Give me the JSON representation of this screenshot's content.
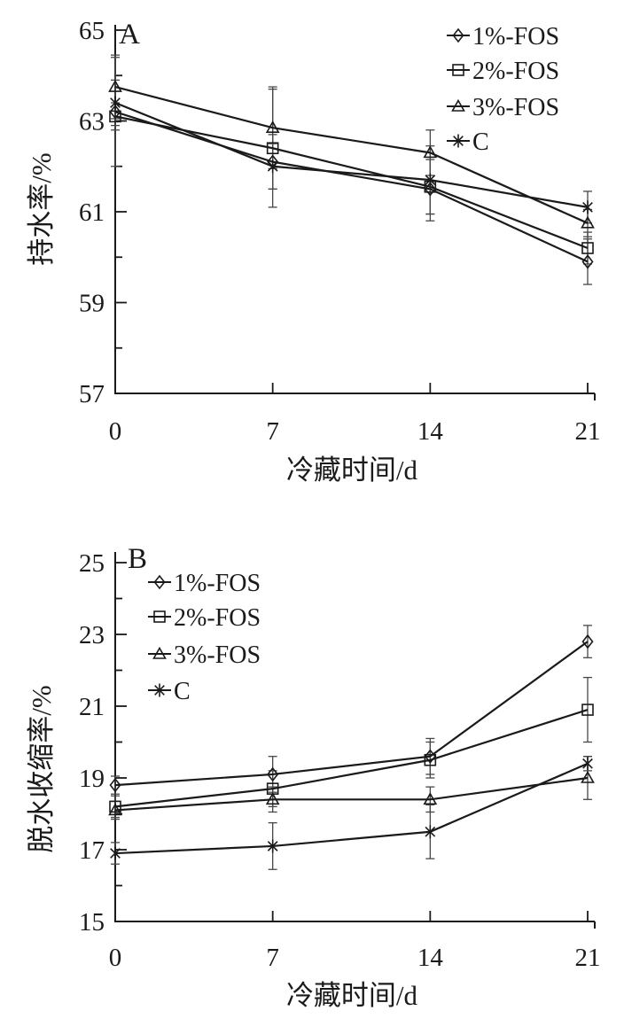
{
  "page": {
    "background": "#ffffff",
    "text_color": "#1a1a1a",
    "line_color": "#1a1a1a",
    "error_bar_color": "#474747"
  },
  "chart_data": [
    {
      "type": "line",
      "panel_label": "A",
      "xlabel": "冷藏时间/d",
      "ylabel": "持水率/%",
      "x": [
        0,
        7,
        14,
        21
      ],
      "xlim": [
        0,
        21
      ],
      "ylim": [
        57,
        65
      ],
      "yticks": [
        57,
        59,
        61,
        63,
        65
      ],
      "yminorticks": [
        58,
        60,
        62,
        64
      ],
      "grid": false,
      "error_bars": true,
      "legend_position": "top-right",
      "series": [
        {
          "name": "1%-FOS",
          "marker": "diamond",
          "values": [
            63.2,
            62.1,
            61.5,
            59.9
          ],
          "errors": [
            1.2,
            0.6,
            0.7,
            0.5
          ]
        },
        {
          "name": "2%-FOS",
          "marker": "square",
          "values": [
            63.1,
            62.4,
            61.55,
            60.2
          ],
          "errors": [
            0.3,
            1.3,
            0.6,
            0.35
          ]
        },
        {
          "name": "3%-FOS",
          "marker": "triangle",
          "values": [
            63.75,
            62.85,
            62.3,
            60.75
          ],
          "errors": [
            0.7,
            0.9,
            0.5,
            0.3
          ]
        },
        {
          "name": "C",
          "marker": "asterisk",
          "values": [
            63.4,
            62.0,
            61.7,
            61.1
          ],
          "errors": [
            0.5,
            0.5,
            0.75,
            0.35
          ]
        }
      ]
    },
    {
      "type": "line",
      "panel_label": "B",
      "xlabel": "冷藏时间/d",
      "ylabel": "脱水收缩率/%",
      "x": [
        0,
        7,
        14,
        21
      ],
      "xlim": [
        0,
        21
      ],
      "ylim": [
        15,
        25
      ],
      "yticks": [
        15,
        17,
        19,
        21,
        23,
        25
      ],
      "yminorticks": [
        16,
        18,
        20,
        22,
        24
      ],
      "grid": false,
      "error_bars": true,
      "legend_position": "top-left",
      "series": [
        {
          "name": "1%-FOS",
          "marker": "diamond",
          "values": [
            18.8,
            19.1,
            19.6,
            22.8
          ],
          "errors": [
            0.25,
            0.5,
            0.5,
            0.45
          ]
        },
        {
          "name": "2%-FOS",
          "marker": "square",
          "values": [
            18.2,
            18.7,
            19.5,
            20.9
          ],
          "errors": [
            0.3,
            0.5,
            0.5,
            0.9
          ]
        },
        {
          "name": "3%-FOS",
          "marker": "triangle",
          "values": [
            18.1,
            18.4,
            18.4,
            19.0
          ],
          "errors": [
            0.25,
            0.35,
            0.35,
            0.6
          ]
        },
        {
          "name": "C",
          "marker": "asterisk",
          "values": [
            16.9,
            17.1,
            17.5,
            19.4
          ],
          "errors": [
            0.3,
            0.65,
            0.75,
            0.2
          ]
        }
      ]
    }
  ]
}
